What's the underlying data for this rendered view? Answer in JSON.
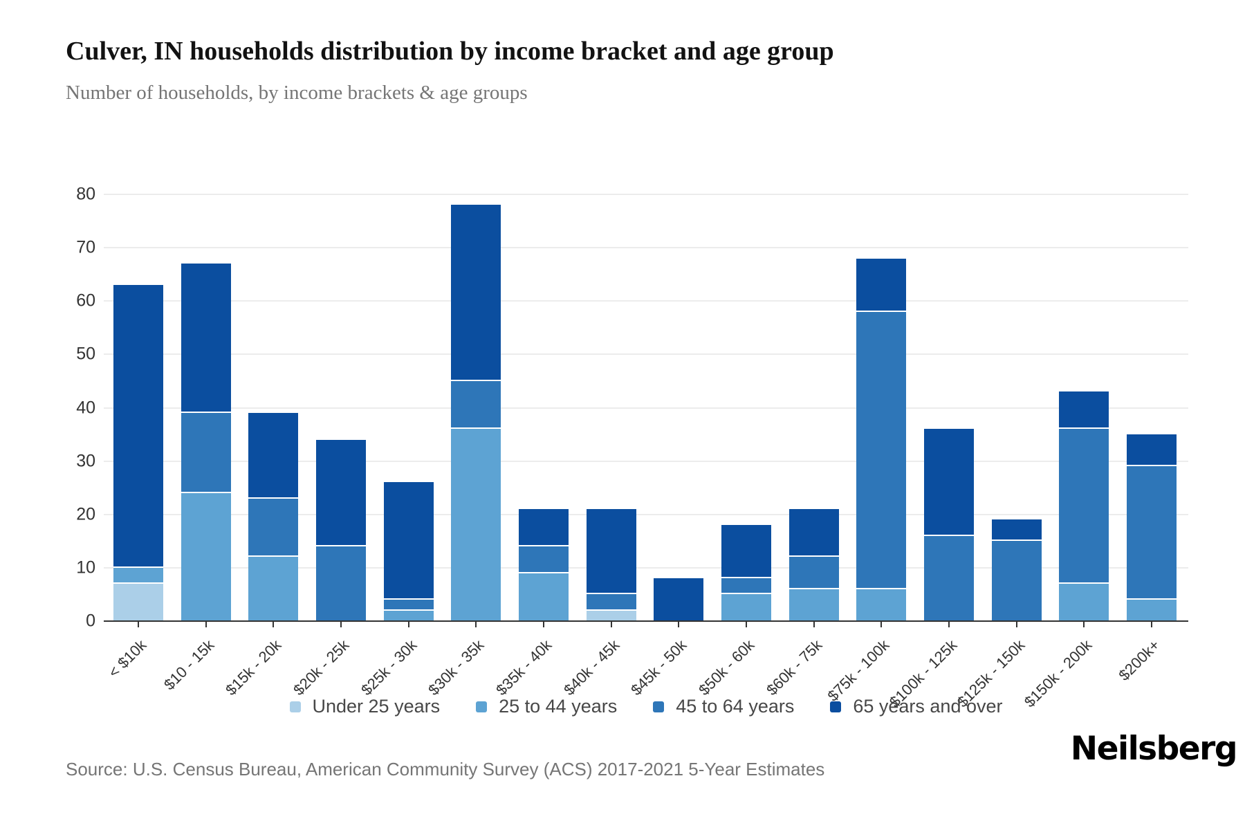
{
  "page": {
    "title": "Culver, IN households distribution by income bracket and age group",
    "subtitle": "Number of households, by income brackets & age groups",
    "source": "Source: U.S. Census Bureau, American Community Survey (ACS) 2017-2021 5-Year Estimates",
    "brand": "Neilsberg"
  },
  "colors": {
    "under_25": "#abcfe8",
    "age_25_44": "#5da3d3",
    "age_45_64": "#2e76b8",
    "age_65_plus": "#0b4e9f",
    "gridline": "#ececec",
    "axis_line": "#333333",
    "title_text": "#121212",
    "muted_text": "#757575",
    "tick_text": "#333333",
    "legend_text": "#474747"
  },
  "chart_data": {
    "type": "bar",
    "stacked": true,
    "title": "Culver, IN households distribution by income bracket and age group",
    "subtitle": "Number of households, by income brackets & age groups",
    "xlabel": "",
    "ylabel": "",
    "ylim": [
      0,
      80
    ],
    "yticks": [
      0,
      10,
      20,
      30,
      40,
      50,
      60,
      70,
      80
    ],
    "grid": true,
    "legend_position": "bottom",
    "categories": [
      "< $10k",
      "$10 - 15k",
      "$15k - 20k",
      "$20k - 25k",
      "$25k - 30k",
      "$30k - 35k",
      "$35k - 40k",
      "$40k - 45k",
      "$45k - 50k",
      "$50k - 60k",
      "$60k - 75k",
      "$75k - 100k",
      "$100k - 125k",
      "$125k - 150k",
      "$150k - 200k",
      "$200k+"
    ],
    "series": [
      {
        "name": "Under 25 years",
        "color": "#abcfe8",
        "values": [
          7,
          0,
          0,
          0,
          0,
          0,
          0,
          2,
          0,
          0,
          0,
          0,
          0,
          0,
          0,
          0
        ]
      },
      {
        "name": "25 to 44 years",
        "color": "#5da3d3",
        "values": [
          3,
          24,
          12,
          0,
          2,
          36,
          9,
          0,
          0,
          5,
          6,
          6,
          0,
          0,
          7,
          4
        ]
      },
      {
        "name": "45 to 64 years",
        "color": "#2e76b8",
        "values": [
          0,
          15,
          11,
          14,
          2,
          9,
          5,
          3,
          0,
          3,
          6,
          52,
          16,
          15,
          29,
          25
        ]
      },
      {
        "name": "65 years and over",
        "color": "#0b4e9f",
        "values": [
          53,
          28,
          16,
          20,
          22,
          33,
          7,
          16,
          8,
          10,
          9,
          10,
          20,
          4,
          7,
          6
        ]
      }
    ],
    "bar_totals": [
      63,
      67,
      39,
      34,
      26,
      78,
      21,
      21,
      8,
      18,
      21,
      68,
      36,
      19,
      43,
      35
    ]
  }
}
